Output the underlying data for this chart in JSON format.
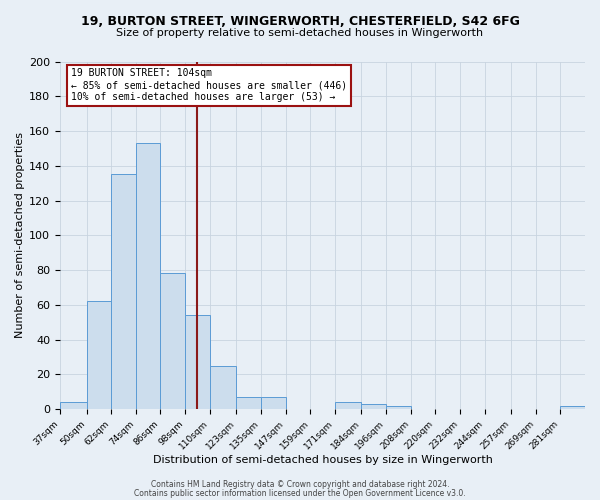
{
  "title": "19, BURTON STREET, WINGERWORTH, CHESTERFIELD, S42 6FG",
  "subtitle": "Size of property relative to semi-detached houses in Wingerworth",
  "xlabel": "Distribution of semi-detached houses by size in Wingerworth",
  "ylabel": "Number of semi-detached properties",
  "bin_labels": [
    "37sqm",
    "50sqm",
    "62sqm",
    "74sqm",
    "86sqm",
    "98sqm",
    "110sqm",
    "123sqm",
    "135sqm",
    "147sqm",
    "159sqm",
    "171sqm",
    "184sqm",
    "196sqm",
    "208sqm",
    "220sqm",
    "232sqm",
    "244sqm",
    "257sqm",
    "269sqm",
    "281sqm"
  ],
  "bar_heights": [
    4,
    62,
    135,
    153,
    78,
    54,
    25,
    7,
    7,
    0,
    0,
    4,
    3,
    2,
    0,
    0,
    0,
    0,
    0,
    0,
    2
  ],
  "bar_color": "#ccdded",
  "bar_edge_color": "#5b9bd5",
  "grid_color": "#c8d4e0",
  "bg_color": "#e8eff6",
  "vline_color": "#8b1a1a",
  "annotation_title": "19 BURTON STREET: 104sqm",
  "annotation_line1": "← 85% of semi-detached houses are smaller (446)",
  "annotation_line2": "10% of semi-detached houses are larger (53) →",
  "annotation_box_color": "#ffffff",
  "annotation_border_color": "#9b1111",
  "footer_line1": "Contains HM Land Registry data © Crown copyright and database right 2024.",
  "footer_line2": "Contains public sector information licensed under the Open Government Licence v3.0.",
  "ylim": [
    0,
    200
  ],
  "yticks": [
    0,
    20,
    40,
    60,
    80,
    100,
    120,
    140,
    160,
    180,
    200
  ],
  "bin_edges": [
    37,
    50,
    62,
    74,
    86,
    98,
    110,
    123,
    135,
    147,
    159,
    171,
    184,
    196,
    208,
    220,
    232,
    244,
    257,
    269,
    281,
    293
  ],
  "vline_x": 104
}
